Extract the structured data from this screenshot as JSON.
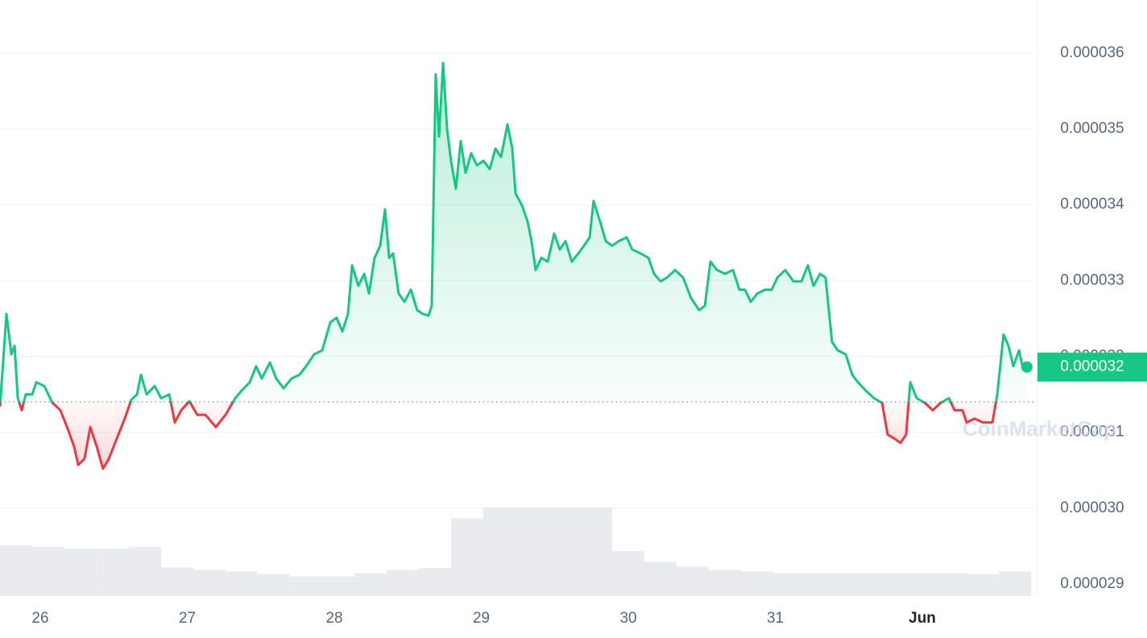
{
  "chart_data": {
    "type": "line",
    "x": [
      25.726,
      25.77,
      25.803,
      25.825,
      25.847,
      25.874,
      25.901,
      25.945,
      25.973,
      26.027,
      26.082,
      26.137,
      26.192,
      26.23,
      26.258,
      26.301,
      26.34,
      26.384,
      26.427,
      26.466,
      26.521,
      26.575,
      26.619,
      26.658,
      26.685,
      26.723,
      26.778,
      26.822,
      26.877,
      26.915,
      26.959,
      27.014,
      27.068,
      27.123,
      27.194,
      27.26,
      27.326,
      27.37,
      27.425,
      27.468,
      27.507,
      27.562,
      27.605,
      27.655,
      27.71,
      27.764,
      27.808,
      27.863,
      27.918,
      27.973,
      28.016,
      28.055,
      28.093,
      28.121,
      28.164,
      28.203,
      28.236,
      28.274,
      28.312,
      28.345,
      28.373,
      28.4,
      28.438,
      28.477,
      28.521,
      28.564,
      28.603,
      28.641,
      28.663,
      28.69,
      28.712,
      28.74,
      28.767,
      28.794,
      28.827,
      28.86,
      28.893,
      28.931,
      28.97,
      29.014,
      29.058,
      29.096,
      29.134,
      29.178,
      29.211,
      29.233,
      29.277,
      29.315,
      29.342,
      29.37,
      29.408,
      29.452,
      29.496,
      29.534,
      29.573,
      29.616,
      29.66,
      29.699,
      29.737,
      29.764,
      29.808,
      29.847,
      29.89,
      29.934,
      29.989,
      30.027,
      30.082,
      30.137,
      30.175,
      30.219,
      30.263,
      30.318,
      30.373,
      30.427,
      30.482,
      30.521,
      30.559,
      30.603,
      30.658,
      30.712,
      30.756,
      30.794,
      30.833,
      30.877,
      30.931,
      30.975,
      31.014,
      31.068,
      31.123,
      31.178,
      31.222,
      31.26,
      31.304,
      31.342,
      31.386,
      31.425,
      31.479,
      31.523,
      31.562,
      31.616,
      31.671,
      31.726,
      31.764,
      31.808,
      31.852,
      31.89,
      31.918,
      31.962,
      32.016,
      32.071,
      32.126,
      32.181,
      32.219,
      32.274,
      32.301,
      32.356,
      32.411,
      32.477,
      32.51,
      32.553,
      32.586,
      32.619,
      32.658,
      32.685,
      32.712
    ],
    "series": [
      {
        "color": "#16c784",
        "below_color": "#ea3943",
        "values": [
          3.134e-05,
          3.256e-05,
          3.203e-05,
          3.214e-05,
          3.145e-05,
          3.129e-05,
          3.15e-05,
          3.15e-05,
          3.166e-05,
          3.161e-05,
          3.139e-05,
          3.129e-05,
          3.102e-05,
          3.081e-05,
          3.057e-05,
          3.065e-05,
          3.107e-05,
          3.081e-05,
          3.052e-05,
          3.065e-05,
          3.092e-05,
          3.118e-05,
          3.143e-05,
          3.15e-05,
          3.176e-05,
          3.15e-05,
          3.161e-05,
          3.145e-05,
          3.15e-05,
          3.113e-05,
          3.129e-05,
          3.141e-05,
          3.123e-05,
          3.123e-05,
          3.107e-05,
          3.123e-05,
          3.145e-05,
          3.155e-05,
          3.166e-05,
          3.187e-05,
          3.171e-05,
          3.192e-05,
          3.171e-05,
          3.158e-05,
          3.171e-05,
          3.176e-05,
          3.187e-05,
          3.203e-05,
          3.208e-05,
          3.245e-05,
          3.251e-05,
          3.233e-05,
          3.256e-05,
          3.32e-05,
          3.293e-05,
          3.309e-05,
          3.283e-05,
          3.33e-05,
          3.346e-05,
          3.394e-05,
          3.33e-05,
          3.336e-05,
          3.283e-05,
          3.272e-05,
          3.288e-05,
          3.261e-05,
          3.256e-05,
          3.254e-05,
          3.267e-05,
          3.572e-05,
          3.49e-05,
          3.587e-05,
          3.5e-05,
          3.458e-05,
          3.421e-05,
          3.484e-05,
          3.442e-05,
          3.468e-05,
          3.452e-05,
          3.458e-05,
          3.447e-05,
          3.474e-05,
          3.463e-05,
          3.506e-05,
          3.474e-05,
          3.415e-05,
          3.399e-05,
          3.378e-05,
          3.352e-05,
          3.314e-05,
          3.33e-05,
          3.325e-05,
          3.362e-05,
          3.341e-05,
          3.352e-05,
          3.325e-05,
          3.336e-05,
          3.346e-05,
          3.357e-05,
          3.405e-05,
          3.378e-05,
          3.352e-05,
          3.346e-05,
          3.352e-05,
          3.357e-05,
          3.341e-05,
          3.336e-05,
          3.33e-05,
          3.309e-05,
          3.299e-05,
          3.304e-05,
          3.314e-05,
          3.304e-05,
          3.277e-05,
          3.261e-05,
          3.267e-05,
          3.325e-05,
          3.314e-05,
          3.309e-05,
          3.314e-05,
          3.288e-05,
          3.288e-05,
          3.272e-05,
          3.283e-05,
          3.288e-05,
          3.288e-05,
          3.304e-05,
          3.314e-05,
          3.299e-05,
          3.299e-05,
          3.32e-05,
          3.293e-05,
          3.309e-05,
          3.304e-05,
          3.219e-05,
          3.208e-05,
          3.203e-05,
          3.176e-05,
          3.166e-05,
          3.155e-05,
          3.145e-05,
          3.139e-05,
          3.097e-05,
          3.092e-05,
          3.086e-05,
          3.097e-05,
          3.166e-05,
          3.145e-05,
          3.139e-05,
          3.129e-05,
          3.139e-05,
          3.145e-05,
          3.129e-05,
          3.129e-05,
          3.113e-05,
          3.118e-05,
          3.113e-05,
          3.113e-05,
          3.15e-05,
          3.229e-05,
          3.214e-05,
          3.187e-05,
          3.208e-05,
          3.184e-05,
          3.186e-05
        ]
      }
    ],
    "baseline": 3.14e-05,
    "current_price": {
      "value": 3.186e-05,
      "label": "0.000032"
    },
    "volume": {
      "x": [
        25.726,
        25.945,
        26.164,
        26.384,
        26.603,
        26.822,
        27.041,
        27.26,
        27.479,
        27.699,
        27.918,
        28.137,
        28.356,
        28.575,
        28.794,
        29.014,
        29.233,
        29.452,
        29.671,
        29.89,
        30.11,
        30.329,
        30.548,
        30.767,
        30.986,
        31.205,
        31.425,
        31.644,
        31.863,
        32.082,
        32.301,
        32.521
      ],
      "values": [
        62,
        60,
        58,
        58,
        60,
        35,
        32,
        30,
        27,
        24,
        24,
        28,
        32,
        34,
        95,
        108,
        108,
        108,
        108,
        55,
        42,
        36,
        32,
        30,
        28,
        28,
        28,
        28,
        28,
        28,
        27,
        30
      ]
    },
    "xlim": [
      25.726,
      32.767
    ],
    "xticks": [
      26,
      27,
      28,
      29,
      30,
      31,
      {
        "value": 32,
        "label": "Jun"
      }
    ],
    "ylim": [
      2.884e-05,
      3.67e-05
    ],
    "yticks": [
      2.9e-05,
      {
        "value": 3e-05,
        "label": "0.000030"
      },
      3.1e-05,
      3.2e-05,
      3.3e-05,
      3.4e-05,
      3.5e-05,
      3.6e-05
    ],
    "grid": true,
    "watermark": "CoinMarketCap"
  }
}
